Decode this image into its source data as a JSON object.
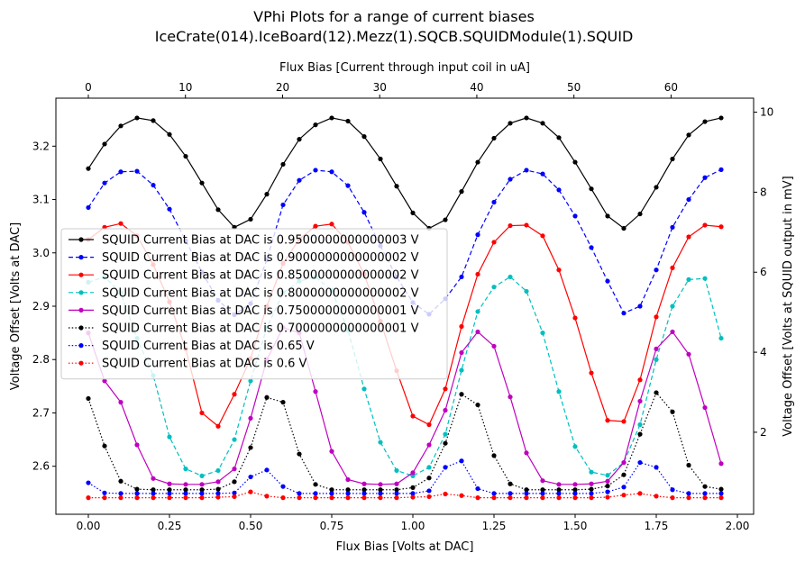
{
  "chart_data": {
    "type": "line",
    "title_line1": "VPhi Plots for a range of current biases",
    "title_line2": "IceCrate(014).IceBoard(12).Mezz(1).SQCB.SQUIDModule(1).SQUID",
    "xlabel": "Flux Bias [Volts at DAC]",
    "ylabel": "Voltage Offset [Volts at DAC]",
    "x2label": "Flux Bias [Current through input coil in uA]",
    "y2label": "Voltage Offset [Volts at SQUID output in mV]",
    "xlim": [
      -0.1,
      2.05
    ],
    "ylim": [
      2.51,
      3.29
    ],
    "x2lim": [
      -3.34,
      68.5
    ],
    "y2lim": [
      -0.05,
      10.35
    ],
    "x_ticks": [
      0.0,
      0.25,
      0.5,
      0.75,
      1.0,
      1.25,
      1.5,
      1.75,
      2.0
    ],
    "x_tick_labels": [
      "0.00",
      "0.25",
      "0.50",
      "0.75",
      "1.00",
      "1.25",
      "1.50",
      "1.75",
      "2.00"
    ],
    "y_ticks": [
      2.6,
      2.7,
      2.8,
      2.9,
      3.0,
      3.1,
      3.2
    ],
    "y_tick_labels": [
      "2.6",
      "2.7",
      "2.8",
      "2.9",
      "3.0",
      "3.1",
      "3.2"
    ],
    "x2_ticks": [
      0,
      10,
      20,
      30,
      40,
      50,
      60
    ],
    "x2_tick_labels": [
      "0",
      "10",
      "20",
      "30",
      "40",
      "50",
      "60"
    ],
    "y2_ticks": [
      2,
      4,
      6,
      8,
      10
    ],
    "y2_tick_labels": [
      "2",
      "4",
      "6",
      "8",
      "10"
    ],
    "legend_position": "center-left",
    "grid": false,
    "x": [
      0.0,
      0.05,
      0.1,
      0.15,
      0.2,
      0.25,
      0.3,
      0.35,
      0.4,
      0.45,
      0.5,
      0.55,
      0.6,
      0.65,
      0.7,
      0.75,
      0.8,
      0.85,
      0.9,
      0.95,
      1.0,
      1.05,
      1.1,
      1.15,
      1.2,
      1.25,
      1.3,
      1.35,
      1.4,
      1.45,
      1.5,
      1.55,
      1.6,
      1.65,
      1.7,
      1.75,
      1.8,
      1.85,
      1.9,
      1.95
    ],
    "series": [
      {
        "name": "SQUID Current Bias at DAC is 0.9500000000000003 V",
        "color": "#000000",
        "dash": "solid",
        "values": [
          3.158,
          3.204,
          3.238,
          3.253,
          3.248,
          3.222,
          3.181,
          3.131,
          3.081,
          3.048,
          3.063,
          3.11,
          3.166,
          3.213,
          3.24,
          3.253,
          3.247,
          3.218,
          3.176,
          3.125,
          3.075,
          3.046,
          3.062,
          3.115,
          3.17,
          3.215,
          3.243,
          3.253,
          3.243,
          3.216,
          3.17,
          3.12,
          3.069,
          3.046,
          3.073,
          3.123,
          3.176,
          3.221,
          3.246,
          3.253
        ]
      },
      {
        "name": "SQUID Current Bias at DAC is 0.9000000000000002 V",
        "color": "#0000ff",
        "dash": "dashed",
        "values": [
          3.085,
          3.131,
          3.152,
          3.153,
          3.127,
          3.082,
          3.023,
          2.964,
          2.911,
          2.884,
          2.905,
          2.987,
          3.09,
          3.136,
          3.155,
          3.152,
          3.126,
          3.076,
          3.013,
          2.955,
          2.907,
          2.885,
          2.914,
          2.955,
          3.034,
          3.095,
          3.138,
          3.155,
          3.148,
          3.118,
          3.069,
          3.01,
          2.947,
          2.887,
          2.9,
          2.968,
          3.048,
          3.1,
          3.141,
          3.156
        ]
      },
      {
        "name": "SQUID Current Bias at DAC is 0.8500000000000002 V",
        "color": "#ff0000",
        "dash": "solid",
        "values": [
          3.025,
          3.048,
          3.055,
          3.032,
          2.978,
          2.908,
          2.82,
          2.7,
          2.675,
          2.735,
          2.802,
          2.9,
          2.98,
          3.026,
          3.05,
          3.054,
          3.02,
          2.96,
          2.872,
          2.779,
          2.694,
          2.678,
          2.745,
          2.862,
          2.96,
          3.02,
          3.051,
          3.052,
          3.032,
          2.968,
          2.878,
          2.775,
          2.686,
          2.684,
          2.762,
          2.88,
          2.972,
          3.03,
          3.052,
          3.049
        ]
      },
      {
        "name": "SQUID Current Bias at DAC is 0.8000000000000002 V",
        "color": "#00bfbf",
        "dash": "dashed",
        "values": [
          2.945,
          2.955,
          2.925,
          2.84,
          2.77,
          2.655,
          2.595,
          2.582,
          2.592,
          2.65,
          2.76,
          2.86,
          2.925,
          2.947,
          2.955,
          2.93,
          2.855,
          2.745,
          2.645,
          2.592,
          2.582,
          2.598,
          2.66,
          2.78,
          2.89,
          2.936,
          2.955,
          2.928,
          2.85,
          2.74,
          2.637,
          2.589,
          2.583,
          2.607,
          2.678,
          2.8,
          2.9,
          2.95,
          2.952,
          2.84
        ]
      },
      {
        "name": "SQUID Current Bias at DAC is 0.7500000000000001 V",
        "color": "#bf00bf",
        "dash": "solid",
        "values": [
          2.85,
          2.76,
          2.72,
          2.64,
          2.577,
          2.567,
          2.566,
          2.566,
          2.571,
          2.595,
          2.69,
          2.8,
          2.86,
          2.85,
          2.74,
          2.628,
          2.575,
          2.567,
          2.566,
          2.567,
          2.588,
          2.64,
          2.705,
          2.813,
          2.852,
          2.825,
          2.73,
          2.625,
          2.573,
          2.566,
          2.566,
          2.567,
          2.572,
          2.607,
          2.722,
          2.82,
          2.852,
          2.81,
          2.71,
          2.605
        ]
      },
      {
        "name": "SQUID Current Bias at DAC is 0.7000000000000001 V",
        "color": "#000000",
        "dash": "dotted",
        "values": [
          2.727,
          2.638,
          2.572,
          2.557,
          2.556,
          2.556,
          2.556,
          2.556,
          2.557,
          2.571,
          2.635,
          2.729,
          2.72,
          2.623,
          2.566,
          2.556,
          2.556,
          2.556,
          2.556,
          2.556,
          2.56,
          2.578,
          2.643,
          2.735,
          2.715,
          2.62,
          2.567,
          2.556,
          2.556,
          2.556,
          2.556,
          2.557,
          2.563,
          2.584,
          2.66,
          2.738,
          2.702,
          2.602,
          2.562,
          2.557
        ]
      },
      {
        "name": "SQUID Current Bias at DAC is 0.65 V",
        "color": "#0000ff",
        "dash": "dotted",
        "values": [
          2.569,
          2.55,
          2.549,
          2.549,
          2.549,
          2.549,
          2.549,
          2.549,
          2.549,
          2.55,
          2.58,
          2.593,
          2.562,
          2.549,
          2.549,
          2.549,
          2.549,
          2.549,
          2.549,
          2.549,
          2.549,
          2.554,
          2.598,
          2.61,
          2.558,
          2.549,
          2.549,
          2.549,
          2.549,
          2.549,
          2.549,
          2.549,
          2.552,
          2.561,
          2.607,
          2.598,
          2.556,
          2.549,
          2.549,
          2.549
        ]
      },
      {
        "name": "SQUID Current Bias at DAC is 0.6 V",
        "color": "#ff0000",
        "dash": "dotted",
        "values": [
          2.541,
          2.541,
          2.541,
          2.541,
          2.541,
          2.541,
          2.541,
          2.541,
          2.542,
          2.543,
          2.552,
          2.544,
          2.541,
          2.541,
          2.541,
          2.541,
          2.541,
          2.541,
          2.541,
          2.541,
          2.542,
          2.543,
          2.548,
          2.545,
          2.541,
          2.541,
          2.541,
          2.541,
          2.541,
          2.541,
          2.541,
          2.541,
          2.542,
          2.546,
          2.549,
          2.544,
          2.541,
          2.541,
          2.541,
          2.541
        ]
      }
    ]
  }
}
